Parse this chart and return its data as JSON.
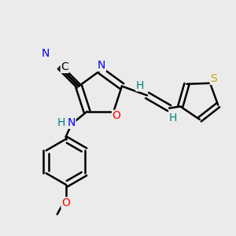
{
  "bg_color": "#ebebeb",
  "bond_color": "#000000",
  "bond_width": 1.8,
  "atom_colors": {
    "C": "#000000",
    "N": "#0000ff",
    "O": "#ff0000",
    "S": "#ccaa00",
    "H": "#008080"
  },
  "font_size": 10,
  "fig_width": 3.0,
  "fig_height": 3.0,
  "dpi": 100
}
